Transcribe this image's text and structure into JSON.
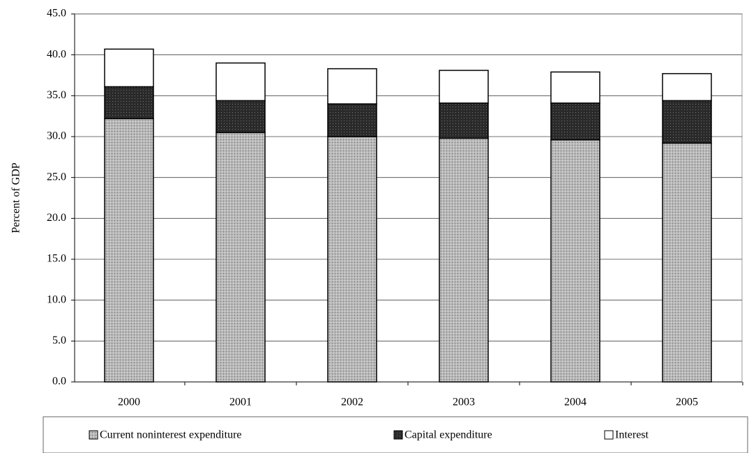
{
  "chart_data": {
    "type": "stacked-bar",
    "y_label": "Percent of GDP",
    "categories": [
      "2000",
      "2001",
      "2002",
      "2003",
      "2004",
      "2005"
    ],
    "series": [
      {
        "name": "Current noninterest expenditure",
        "color": "#a8a8a8",
        "values": [
          32.2,
          30.5,
          30.0,
          29.8,
          29.6,
          29.2
        ]
      },
      {
        "name": "Capital expenditure",
        "color": "#2a2a2a",
        "values": [
          3.9,
          3.9,
          4.0,
          4.3,
          4.5,
          5.2
        ]
      },
      {
        "name": "Interest",
        "color": "#ffffff",
        "values": [
          4.6,
          4.6,
          4.3,
          4.0,
          3.8,
          3.3
        ]
      }
    ],
    "ylim": [
      0,
      45
    ],
    "yticks": [
      {
        "value": 0,
        "label": "0.0"
      },
      {
        "value": 5,
        "label": "5.0"
      },
      {
        "value": 10,
        "label": "10.0"
      },
      {
        "value": 15,
        "label": "15.0"
      },
      {
        "value": 20,
        "label": "20.0"
      },
      {
        "value": 25,
        "label": "25.0"
      },
      {
        "value": 30,
        "label": "30.0"
      },
      {
        "value": 35,
        "label": "35.0"
      },
      {
        "value": 40,
        "label": "40.0"
      },
      {
        "value": 45,
        "label": "45.0"
      }
    ],
    "grid": true
  }
}
